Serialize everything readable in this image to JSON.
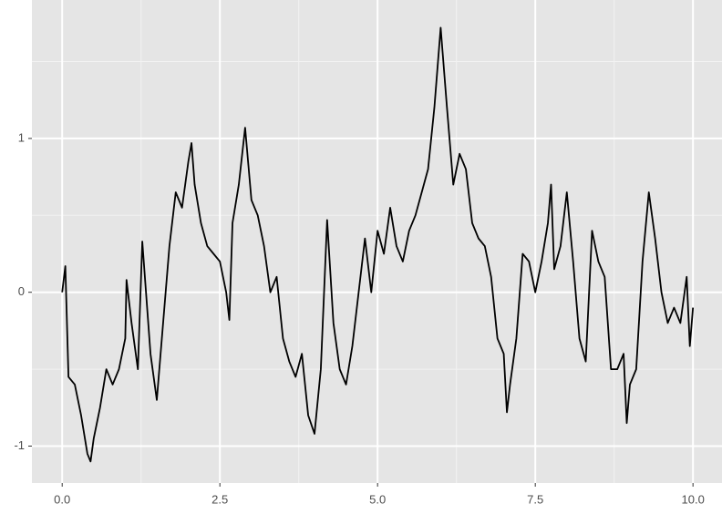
{
  "chart_data": {
    "type": "line",
    "x": [
      0.0,
      0.05,
      0.1,
      0.2,
      0.3,
      0.4,
      0.45,
      0.5,
      0.6,
      0.7,
      0.8,
      0.9,
      1.0,
      1.02,
      1.1,
      1.2,
      1.27,
      1.4,
      1.5,
      1.6,
      1.7,
      1.8,
      1.9,
      2.0,
      2.05,
      2.1,
      2.2,
      2.3,
      2.4,
      2.5,
      2.6,
      2.65,
      2.7,
      2.8,
      2.9,
      3.0,
      3.1,
      3.2,
      3.3,
      3.4,
      3.5,
      3.6,
      3.7,
      3.8,
      3.9,
      4.0,
      4.1,
      4.2,
      4.3,
      4.4,
      4.5,
      4.6,
      4.7,
      4.8,
      4.9,
      5.0,
      5.1,
      5.2,
      5.3,
      5.4,
      5.5,
      5.6,
      5.7,
      5.8,
      5.9,
      6.0,
      6.1,
      6.2,
      6.3,
      6.4,
      6.5,
      6.6,
      6.7,
      6.8,
      6.9,
      7.0,
      7.05,
      7.1,
      7.2,
      7.3,
      7.4,
      7.5,
      7.6,
      7.7,
      7.75,
      7.8,
      7.9,
      8.0,
      8.1,
      8.2,
      8.3,
      8.4,
      8.5,
      8.6,
      8.7,
      8.8,
      8.9,
      8.95,
      9.0,
      9.1,
      9.2,
      9.3,
      9.4,
      9.5,
      9.6,
      9.7,
      9.8,
      9.9,
      9.95,
      10.0
    ],
    "values": [
      0.0,
      0.17,
      -0.55,
      -0.6,
      -0.8,
      -1.05,
      -1.1,
      -0.95,
      -0.75,
      -0.5,
      -0.6,
      -0.5,
      -0.3,
      0.08,
      -0.2,
      -0.5,
      0.33,
      -0.4,
      -0.7,
      -0.2,
      0.3,
      0.65,
      0.55,
      0.85,
      0.97,
      0.7,
      0.45,
      0.3,
      0.25,
      0.2,
      0.0,
      -0.18,
      0.45,
      0.7,
      1.07,
      0.6,
      0.5,
      0.3,
      0.0,
      0.1,
      -0.3,
      -0.45,
      -0.55,
      -0.4,
      -0.8,
      -0.92,
      -0.5,
      0.47,
      -0.2,
      -0.5,
      -0.6,
      -0.35,
      0.0,
      0.35,
      0.0,
      0.4,
      0.25,
      0.55,
      0.3,
      0.2,
      0.4,
      0.5,
      0.65,
      0.8,
      1.2,
      1.72,
      1.2,
      0.7,
      0.9,
      0.8,
      0.45,
      0.35,
      0.3,
      0.1,
      -0.3,
      -0.4,
      -0.78,
      -0.6,
      -0.3,
      0.25,
      0.2,
      0.0,
      0.2,
      0.45,
      0.7,
      0.15,
      0.3,
      0.65,
      0.2,
      -0.3,
      -0.45,
      0.4,
      0.2,
      0.1,
      -0.5,
      -0.5,
      -0.4,
      -0.85,
      -0.6,
      -0.5,
      0.2,
      0.65,
      0.35,
      0.0,
      -0.2,
      -0.1,
      -0.2,
      0.1,
      -0.35,
      -0.1
    ],
    "color": "#000000",
    "xlim": [
      -0.48,
      10.46
    ],
    "ylim": [
      -1.24,
      1.9
    ],
    "xticks": [
      {
        "value": 0,
        "label": "0.0"
      },
      2.5,
      {
        "value": 5,
        "label": "5.0"
      },
      7.5,
      {
        "value": 10,
        "label": "10.0"
      }
    ],
    "yticks": [
      -1,
      0,
      1
    ],
    "grid": true
  }
}
